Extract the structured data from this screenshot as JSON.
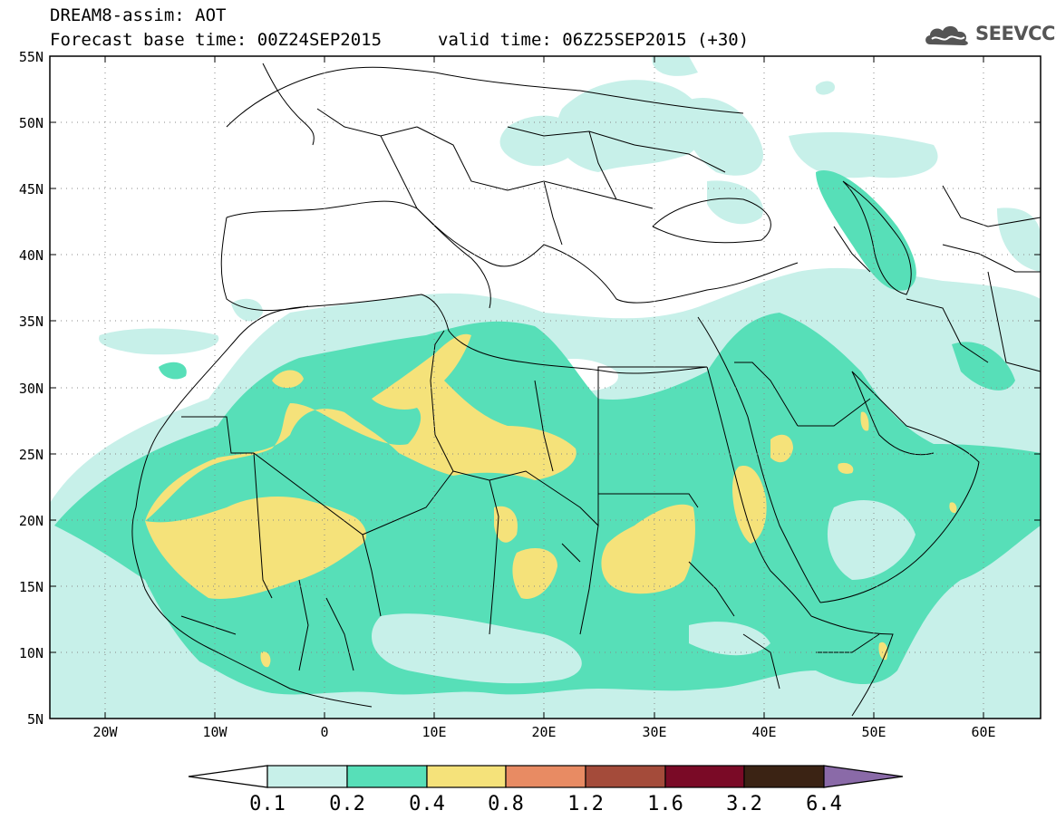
{
  "header": {
    "title": "DREAM8-assim: AOT",
    "base_time": "Forecast base time: 00Z24SEP2015",
    "valid_time": "valid time: 06Z25SEP2015 (+30)",
    "logo_text": "SEEVCCC",
    "logo_icon": "cloud-icon"
  },
  "map": {
    "lon_range": [
      -25,
      65
    ],
    "lat_range": [
      5,
      55
    ],
    "lat_ticks": [
      "55N",
      "50N",
      "45N",
      "40N",
      "35N",
      "30N",
      "25N",
      "20N",
      "15N",
      "10N",
      "5N"
    ],
    "lon_ticks": [
      "20W",
      "10W",
      "0",
      "10E",
      "20E",
      "30E",
      "40E",
      "50E",
      "60E"
    ],
    "grid": "dotted"
  },
  "legend": {
    "values": [
      "0.1",
      "0.2",
      "0.4",
      "0.8",
      "1.2",
      "1.6",
      "3.2",
      "6.4"
    ],
    "colors": [
      "#ffffff",
      "#c7f0e9",
      "#57dfb8",
      "#f5e27a",
      "#e88b63",
      "#a44b3a",
      "#7a0a26",
      "#3b2314",
      "#8a6aa8"
    ]
  }
}
